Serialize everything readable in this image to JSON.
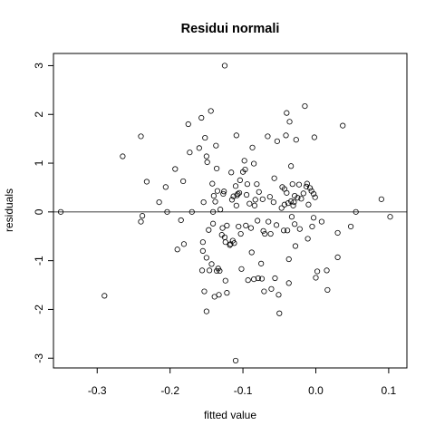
{
  "chart_data": {
    "type": "scatter",
    "title": "Residui normali",
    "xlabel": "fitted value",
    "ylabel": "residuals",
    "xlim": [
      -0.36,
      0.125
    ],
    "ylim": [
      -3.2,
      3.25
    ],
    "x_ticks": [
      -0.3,
      -0.2,
      -0.1,
      0.0,
      0.1
    ],
    "x_tick_labels": [
      "-0.3",
      "-0.2",
      "-0.1",
      "0.0",
      "0.1"
    ],
    "y_ticks": [
      -3,
      -2,
      -1,
      0,
      1,
      2,
      3
    ],
    "y_tick_labels": [
      "-3",
      "-2",
      "-1",
      "0",
      "1",
      "2",
      "3"
    ],
    "reference_line_y": 0,
    "grid": false,
    "marker": "open-circle",
    "points": [
      [
        -0.35,
        0.0
      ],
      [
        -0.29,
        -1.72
      ],
      [
        -0.265,
        1.14
      ],
      [
        -0.24,
        1.55
      ],
      [
        -0.24,
        -0.2
      ],
      [
        -0.238,
        -0.08
      ],
      [
        -0.232,
        0.62
      ],
      [
        -0.215,
        0.2
      ],
      [
        -0.206,
        0.51
      ],
      [
        -0.204,
        0.0
      ],
      [
        -0.193,
        0.88
      ],
      [
        -0.19,
        -0.77
      ],
      [
        -0.185,
        -0.17
      ],
      [
        -0.182,
        0.63
      ],
      [
        -0.181,
        -0.66
      ],
      [
        -0.175,
        1.8
      ],
      [
        -0.173,
        1.22
      ],
      [
        -0.17,
        0.0
      ],
      [
        -0.16,
        1.31
      ],
      [
        -0.157,
        1.93
      ],
      [
        -0.156,
        -1.2
      ],
      [
        -0.155,
        -0.62
      ],
      [
        -0.155,
        -0.8
      ],
      [
        -0.154,
        0.2
      ],
      [
        -0.153,
        -1.63
      ],
      [
        -0.152,
        1.52
      ],
      [
        -0.15,
        -0.94
      ],
      [
        -0.15,
        1.14
      ],
      [
        -0.15,
        -2.04
      ],
      [
        -0.149,
        1.02
      ],
      [
        -0.147,
        -0.37
      ],
      [
        -0.146,
        -1.2
      ],
      [
        -0.144,
        2.07
      ],
      [
        -0.143,
        -1.07
      ],
      [
        -0.142,
        0.58
      ],
      [
        -0.141,
        0.0
      ],
      [
        -0.141,
        -0.24
      ],
      [
        -0.14,
        0.33
      ],
      [
        -0.139,
        -1.74
      ],
      [
        -0.138,
        0.21
      ],
      [
        -0.137,
        1.36
      ],
      [
        -0.136,
        -1.21
      ],
      [
        -0.136,
        0.89
      ],
      [
        -0.135,
        0.43
      ],
      [
        -0.134,
        -1.16
      ],
      [
        -0.133,
        -1.7
      ],
      [
        -0.132,
        -1.21
      ],
      [
        -0.131,
        0.05
      ],
      [
        -0.129,
        -0.47
      ],
      [
        -0.128,
        -0.33
      ],
      [
        -0.127,
        0.37
      ],
      [
        -0.126,
        0.42
      ],
      [
        -0.125,
        -0.52
      ],
      [
        -0.125,
        3.0
      ],
      [
        -0.124,
        -0.62
      ],
      [
        -0.124,
        -1.41
      ],
      [
        -0.122,
        -1.66
      ],
      [
        -0.122,
        -0.28
      ],
      [
        -0.118,
        -0.68
      ],
      [
        -0.117,
        -0.66
      ],
      [
        -0.116,
        0.81
      ],
      [
        -0.115,
        0.25
      ],
      [
        -0.114,
        -0.59
      ],
      [
        -0.113,
        0.32
      ],
      [
        -0.112,
        -0.64
      ],
      [
        -0.11,
        -3.05
      ],
      [
        -0.11,
        0.53
      ],
      [
        -0.109,
        1.57
      ],
      [
        -0.109,
        0.13
      ],
      [
        -0.108,
        0.34
      ],
      [
        -0.107,
        0.37
      ],
      [
        -0.106,
        -0.3
      ],
      [
        -0.105,
        0.39
      ],
      [
        -0.104,
        0.65
      ],
      [
        -0.103,
        -0.45
      ],
      [
        -0.102,
        -1.17
      ],
      [
        -0.1,
        0.82
      ],
      [
        -0.098,
        1.05
      ],
      [
        -0.097,
        0.87
      ],
      [
        -0.096,
        -0.28
      ],
      [
        -0.095,
        0.35
      ],
      [
        -0.094,
        0.57
      ],
      [
        -0.093,
        -1.4
      ],
      [
        -0.091,
        0.17
      ],
      [
        -0.089,
        -0.33
      ],
      [
        -0.088,
        -0.83
      ],
      [
        -0.087,
        1.32
      ],
      [
        -0.085,
        0.99
      ],
      [
        -0.085,
        -1.38
      ],
      [
        -0.084,
        0.13
      ],
      [
        -0.083,
        0.25
      ],
      [
        -0.081,
        0.57
      ],
      [
        -0.08,
        -0.18
      ],
      [
        -0.079,
        -1.36
      ],
      [
        -0.078,
        0.41
      ],
      [
        -0.075,
        -1.06
      ],
      [
        -0.074,
        -1.37
      ],
      [
        -0.073,
        0.26
      ],
      [
        -0.072,
        -0.39
      ],
      [
        -0.071,
        -1.63
      ],
      [
        -0.07,
        -0.45
      ],
      [
        -0.066,
        1.55
      ],
      [
        -0.065,
        -0.2
      ],
      [
        -0.063,
        0.31
      ],
      [
        -0.062,
        -0.45
      ],
      [
        -0.061,
        -1.58
      ],
      [
        -0.058,
        0.2
      ],
      [
        -0.057,
        0.69
      ],
      [
        -0.056,
        -1.36
      ],
      [
        -0.054,
        -0.27
      ],
      [
        -0.053,
        1.45
      ],
      [
        -0.051,
        -1.7
      ],
      [
        -0.05,
        -2.08
      ],
      [
        -0.047,
        0.08
      ],
      [
        -0.046,
        0.51
      ],
      [
        -0.044,
        -0.38
      ],
      [
        -0.043,
        0.47
      ],
      [
        -0.043,
        0.15
      ],
      [
        -0.041,
        1.57
      ],
      [
        -0.04,
        2.03
      ],
      [
        -0.04,
        0.39
      ],
      [
        -0.039,
        -0.38
      ],
      [
        -0.038,
        0.18
      ],
      [
        -0.037,
        -0.97
      ],
      [
        -0.037,
        -1.46
      ],
      [
        -0.036,
        1.85
      ],
      [
        -0.034,
        0.22
      ],
      [
        -0.034,
        0.94
      ],
      [
        -0.033,
        -0.1
      ],
      [
        -0.032,
        0.57
      ],
      [
        -0.031,
        0.13
      ],
      [
        -0.03,
        0.2
      ],
      [
        -0.029,
        0.33
      ],
      [
        -0.029,
        -0.25
      ],
      [
        -0.028,
        -0.7
      ],
      [
        -0.027,
        1.48
      ],
      [
        -0.025,
        0.29
      ],
      [
        -0.023,
        0.56
      ],
      [
        -0.022,
        -0.35
      ],
      [
        -0.02,
        0.27
      ],
      [
        -0.017,
        0.38
      ],
      [
        -0.015,
        2.17
      ],
      [
        -0.013,
        0.52
      ],
      [
        -0.012,
        0.58
      ],
      [
        -0.011,
        -0.55
      ],
      [
        -0.01,
        0.15
      ],
      [
        -0.008,
        0.49
      ],
      [
        -0.006,
        0.43
      ],
      [
        -0.005,
        -0.3
      ],
      [
        -0.003,
        -0.12
      ],
      [
        -0.003,
        0.37
      ],
      [
        -0.002,
        1.53
      ],
      [
        -0.001,
        0.3
      ],
      [
        0.0,
        -1.35
      ],
      [
        0.002,
        -1.22
      ],
      [
        0.008,
        -0.2
      ],
      [
        0.015,
        -1.2
      ],
      [
        0.016,
        -1.6
      ],
      [
        0.03,
        -0.43
      ],
      [
        0.03,
        -0.93
      ],
      [
        0.037,
        1.77
      ],
      [
        0.048,
        -0.3
      ],
      [
        0.055,
        0.0
      ],
      [
        0.09,
        0.26
      ],
      [
        0.102,
        -0.1
      ]
    ]
  }
}
